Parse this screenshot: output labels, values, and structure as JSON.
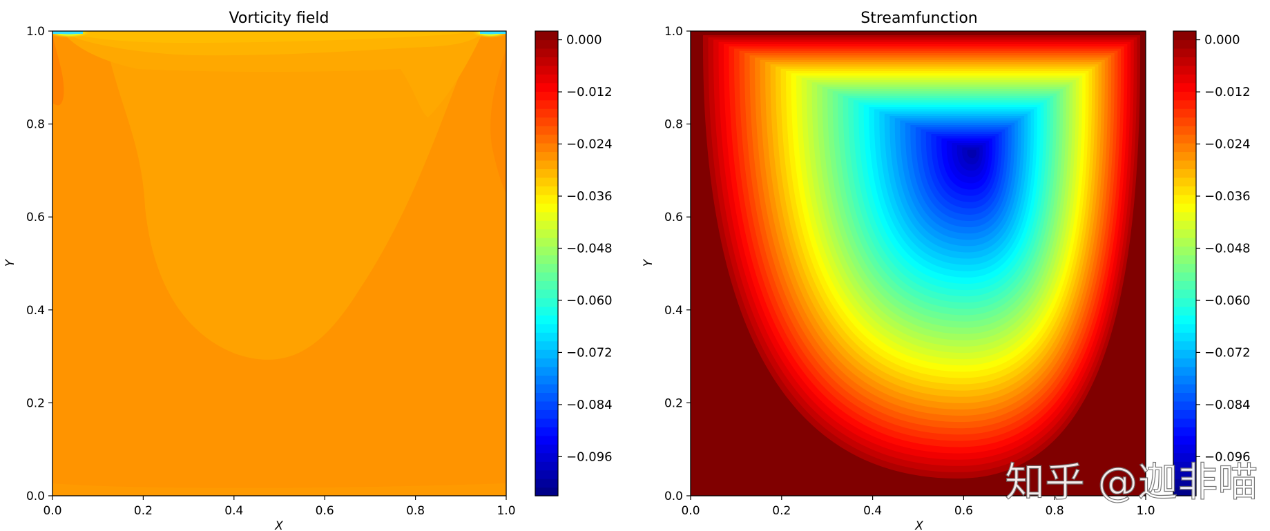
{
  "chart_data": [
    {
      "type": "heatmap",
      "subtype": "filled-contour",
      "title": "Vorticity field",
      "xlabel": "X",
      "ylabel": "Y",
      "xlim": [
        0.0,
        1.0
      ],
      "ylim": [
        0.0,
        1.0
      ],
      "xticks": [
        "0.0",
        "0.2",
        "0.4",
        "0.6",
        "0.8",
        "1.0"
      ],
      "yticks": [
        "0.0",
        "0.2",
        "0.4",
        "0.6",
        "0.8",
        "1.0"
      ],
      "colormap": "jet",
      "grid": false,
      "colorbar": {
        "range": [
          -0.105,
          0.002
        ],
        "ticks": [
          0.0,
          -0.012,
          -0.024,
          -0.036,
          -0.048,
          -0.06,
          -0.072,
          -0.084,
          -0.096
        ],
        "tick_labels": [
          "0.000",
          "−0.012",
          "−0.024",
          "−0.036",
          "−0.048",
          "−0.060",
          "−0.072",
          "−0.084",
          "−0.096"
        ]
      }
    },
    {
      "type": "heatmap",
      "subtype": "filled-contour",
      "title": "Streamfunction",
      "xlabel": "X",
      "ylabel": "Y",
      "xlim": [
        0.0,
        1.0
      ],
      "ylim": [
        0.0,
        1.0
      ],
      "xticks": [
        "0.0",
        "0.2",
        "0.4",
        "0.6",
        "0.8",
        "1.0"
      ],
      "yticks": [
        "0.0",
        "0.2",
        "0.4",
        "0.6",
        "0.8",
        "1.0"
      ],
      "colormap": "jet",
      "grid": false,
      "vortex_center": [
        0.62,
        0.74
      ],
      "min_value": -0.1,
      "colorbar": {
        "range": [
          -0.105,
          0.002
        ],
        "ticks": [
          0.0,
          -0.012,
          -0.024,
          -0.036,
          -0.048,
          -0.06,
          -0.072,
          -0.084,
          -0.096
        ],
        "tick_labels": [
          "0.000",
          "−0.012",
          "−0.024",
          "−0.036",
          "−0.048",
          "−0.060",
          "−0.072",
          "−0.084",
          "−0.096"
        ]
      }
    }
  ],
  "watermark": {
    "text": "知乎 @迦非喵"
  }
}
